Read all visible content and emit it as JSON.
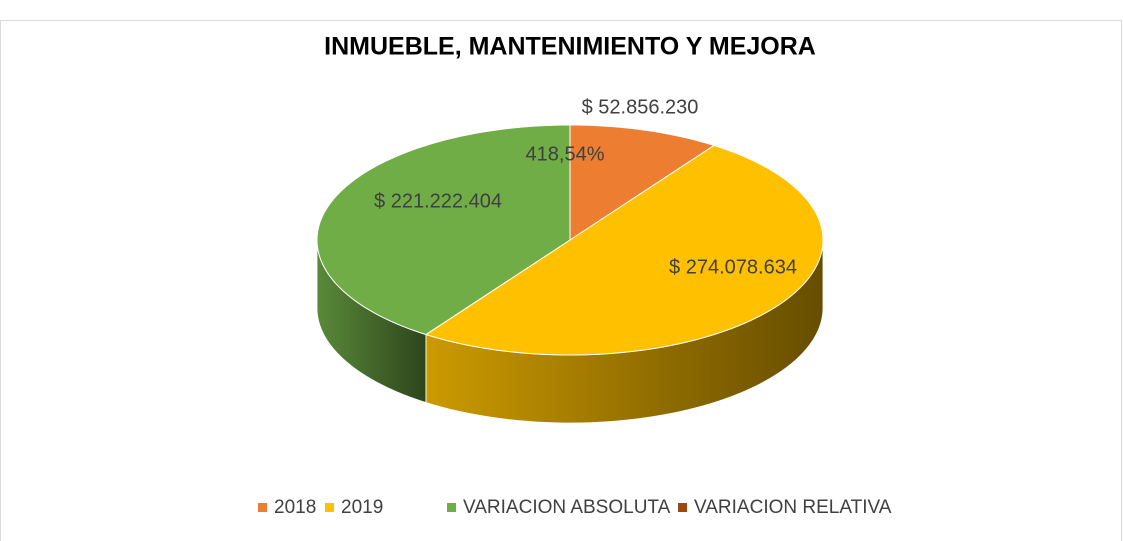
{
  "chart_data": {
    "type": "pie",
    "title": "INMUEBLE, MANTENIMIENTO Y MEJORA",
    "categories": [
      "2018",
      "2019",
      "VARIACION ABSOLUTA",
      "VARIACION RELATIVA"
    ],
    "values": [
      52856230,
      274078634,
      221222404,
      418.54
    ],
    "value_labels": [
      "$ 52.856.230",
      "$ 274.078.634",
      "$ 221.222.404",
      "418,54%"
    ],
    "colors": [
      "#ed7d31",
      "#ffc000",
      "#70ad47",
      "#9e480e"
    ],
    "legend": "bottom"
  }
}
